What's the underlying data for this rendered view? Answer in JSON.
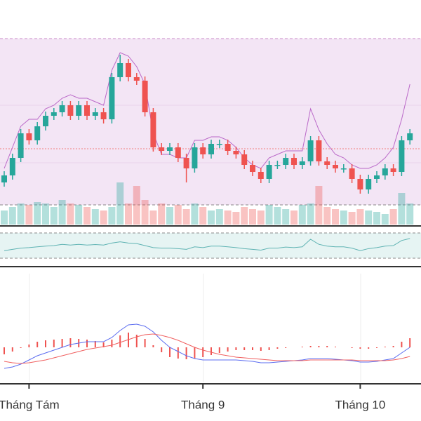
{
  "chart_data": {
    "type": "candlestick",
    "categories": [
      null,
      null,
      null,
      "Tháng Tám",
      null,
      null,
      null,
      null,
      null,
      null,
      null,
      null,
      null,
      null,
      null,
      null,
      null,
      null,
      null,
      null,
      null,
      null,
      null,
      null,
      "Tháng 9",
      null,
      null,
      null,
      null,
      null,
      null,
      null,
      null,
      null,
      null,
      null,
      null,
      null,
      null,
      null,
      null,
      null,
      null,
      "Tháng 10",
      null,
      null,
      null,
      null,
      null,
      null
    ],
    "open": [
      60,
      70,
      95,
      130,
      120,
      140,
      155,
      160,
      170,
      155,
      170,
      155,
      160,
      150,
      210,
      230,
      210,
      205,
      160,
      110,
      105,
      110,
      95,
      80,
      110,
      100,
      115,
      115,
      105,
      100,
      85,
      75,
      65,
      85,
      85,
      95,
      85,
      90,
      120,
      90,
      85,
      80,
      80,
      65,
      50,
      65,
      70,
      80,
      75,
      120
    ],
    "high": [
      76,
      101,
      136,
      136,
      146,
      161,
      166,
      176,
      176,
      176,
      176,
      166,
      166,
      216,
      242,
      236,
      216,
      211,
      166,
      116,
      116,
      116,
      101,
      116,
      116,
      121,
      121,
      121,
      111,
      106,
      91,
      81,
      91,
      91,
      101,
      101,
      96,
      126,
      126,
      96,
      91,
      86,
      86,
      71,
      71,
      76,
      86,
      86,
      126,
      136
    ],
    "low": [
      54,
      64,
      89,
      114,
      114,
      134,
      149,
      154,
      149,
      149,
      149,
      149,
      144,
      144,
      204,
      204,
      199,
      154,
      104,
      99,
      99,
      89,
      60,
      74,
      94,
      94,
      109,
      99,
      94,
      79,
      69,
      59,
      59,
      79,
      79,
      79,
      79,
      84,
      84,
      79,
      74,
      74,
      59,
      44,
      44,
      59,
      64,
      69,
      69,
      114
    ],
    "close": [
      70,
      95,
      130,
      120,
      140,
      155,
      160,
      170,
      155,
      170,
      155,
      160,
      150,
      210,
      230,
      210,
      205,
      160,
      110,
      105,
      110,
      95,
      80,
      110,
      100,
      115,
      115,
      105,
      100,
      85,
      75,
      65,
      85,
      85,
      95,
      85,
      90,
      120,
      90,
      85,
      80,
      80,
      65,
      50,
      65,
      70,
      80,
      75,
      120,
      130
    ],
    "ylim": [
      0,
      265
    ],
    "level": 108,
    "band": [
      80,
      110,
      140,
      150,
      150,
      165,
      170,
      180,
      185,
      180,
      180,
      175,
      170,
      220,
      245,
      240,
      225,
      200,
      130,
      100,
      100,
      95,
      95,
      120,
      120,
      125,
      125,
      120,
      110,
      95,
      85,
      80,
      95,
      100,
      105,
      105,
      105,
      165,
      135,
      115,
      100,
      95,
      85,
      80,
      80,
      85,
      95,
      110,
      150,
      200
    ],
    "volume": [
      20,
      25,
      30,
      28,
      32,
      30,
      25,
      35,
      30,
      28,
      25,
      22,
      20,
      25,
      60,
      30,
      55,
      35,
      20,
      30,
      25,
      28,
      22,
      30,
      25,
      20,
      22,
      20,
      18,
      25,
      22,
      20,
      28,
      25,
      22,
      20,
      28,
      30,
      55,
      25,
      22,
      20,
      18,
      22,
      20,
      18,
      15,
      22,
      45,
      30
    ],
    "vlim": [
      0,
      65
    ],
    "rsi": [
      30,
      35,
      40,
      42,
      45,
      48,
      50,
      55,
      52,
      55,
      52,
      54,
      52,
      60,
      65,
      60,
      58,
      50,
      42,
      40,
      40,
      38,
      35,
      45,
      42,
      48,
      48,
      45,
      42,
      38,
      35,
      32,
      40,
      40,
      44,
      42,
      45,
      75,
      55,
      48,
      45,
      45,
      40,
      30,
      38,
      42,
      48,
      50,
      70,
      78
    ],
    "rsi_lim": [
      0,
      100
    ],
    "macd": [
      -30,
      -28,
      -24,
      -18,
      -12,
      -8,
      -4,
      0,
      4,
      6,
      8,
      8,
      8,
      14,
      24,
      32,
      33,
      30,
      22,
      10,
      0,
      -6,
      -12,
      -16,
      -18,
      -18,
      -18,
      -18,
      -18,
      -19,
      -20,
      -22,
      -22,
      -21,
      -20,
      -19,
      -18,
      -16,
      -16,
      -16,
      -17,
      -18,
      -19,
      -21,
      -21,
      -20,
      -18,
      -16,
      -8,
      0
    ],
    "signal": [
      -20,
      -22,
      -23,
      -22,
      -20,
      -18,
      -15,
      -12,
      -9,
      -6,
      -3,
      -1,
      1,
      3,
      7,
      11,
      15,
      18,
      19,
      17,
      14,
      10,
      5,
      0,
      -4,
      -7,
      -10,
      -12,
      -14,
      -15,
      -16,
      -17,
      -18,
      -19,
      -19,
      -19,
      -19,
      -18,
      -18,
      -18,
      -18,
      -18,
      -18,
      -19,
      -19,
      -19,
      -19,
      -18,
      -16,
      -13
    ],
    "hist": [
      -10,
      -6,
      -1,
      4,
      8,
      10,
      11,
      12,
      13,
      12,
      11,
      9,
      7,
      11,
      17,
      21,
      18,
      12,
      3,
      -7,
      -14,
      -16,
      -17,
      -16,
      -14,
      -11,
      -8,
      -6,
      -4,
      -4,
      -4,
      -5,
      -4,
      -2,
      -1,
      0,
      1,
      2,
      2,
      2,
      1,
      0,
      -1,
      -2,
      -2,
      -1,
      1,
      2,
      8,
      13
    ],
    "macd_lim": [
      -50,
      95
    ],
    "up_color": "#26a69a",
    "down_color": "#ef5350",
    "band_color": "#ba68c8",
    "rsi_color": "#5fb3b3",
    "macd_color": "#5b6cf0",
    "signal_color": "#f06060"
  }
}
